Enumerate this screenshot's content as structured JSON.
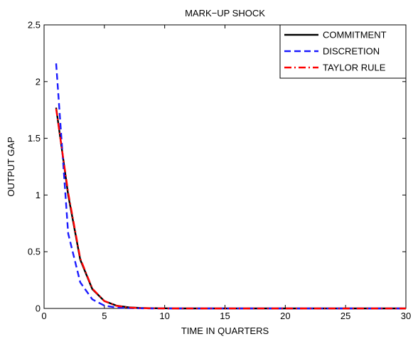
{
  "chart_data": {
    "type": "line",
    "title": "MARK−UP SHOCK",
    "xlabel": "TIME IN QUARTERS",
    "ylabel": "OUTPUT GAP",
    "xlim": [
      0,
      30
    ],
    "ylim": [
      0,
      2.5
    ],
    "xticks": [
      0,
      5,
      10,
      15,
      20,
      25,
      30
    ],
    "yticks": [
      0,
      0.5,
      1,
      1.5,
      2,
      2.5
    ],
    "xtick_labels": [
      "0",
      "5",
      "10",
      "15",
      "20",
      "25",
      "30"
    ],
    "ytick_labels": [
      "0",
      "0.5",
      "1",
      "1.5",
      "2",
      "2.5"
    ],
    "grid": false,
    "legend_position": "top-right",
    "x": [
      1,
      2,
      3,
      4,
      5,
      6,
      7,
      8,
      9,
      10,
      11,
      12,
      13,
      14,
      15,
      16,
      17,
      18,
      19,
      20,
      21,
      22,
      23,
      24,
      25,
      26,
      27,
      28,
      29,
      30
    ],
    "series": [
      {
        "name": "COMMITMENT",
        "color": "#000000",
        "dash": "solid",
        "values": [
          1.77,
          1.0,
          0.43,
          0.17,
          0.065,
          0.025,
          0.01,
          0.004,
          0.002,
          0.001,
          0,
          0,
          0,
          0,
          0,
          0,
          0,
          0,
          0,
          0,
          0,
          0,
          0,
          0,
          0,
          0,
          0,
          0,
          0,
          0
        ]
      },
      {
        "name": "DISCRETION",
        "color": "#1a1aff",
        "dash": "dashed",
        "values": [
          2.16,
          0.66,
          0.23,
          0.08,
          0.025,
          0.008,
          0.003,
          0.001,
          0,
          0,
          0,
          0,
          0,
          0,
          0,
          0,
          0,
          0,
          0,
          0,
          0,
          0,
          0,
          0,
          0,
          0,
          0,
          0,
          0,
          0
        ]
      },
      {
        "name": "TAYLOR RULE",
        "color": "#ff0000",
        "dash": "dashdot",
        "values": [
          1.76,
          1.02,
          0.44,
          0.175,
          0.065,
          0.023,
          0.008,
          0.003,
          0.001,
          0,
          0,
          0,
          0,
          0,
          0,
          0,
          0,
          0,
          0,
          0,
          0,
          0,
          0,
          0,
          0,
          0,
          0,
          0,
          0,
          0
        ]
      }
    ]
  }
}
